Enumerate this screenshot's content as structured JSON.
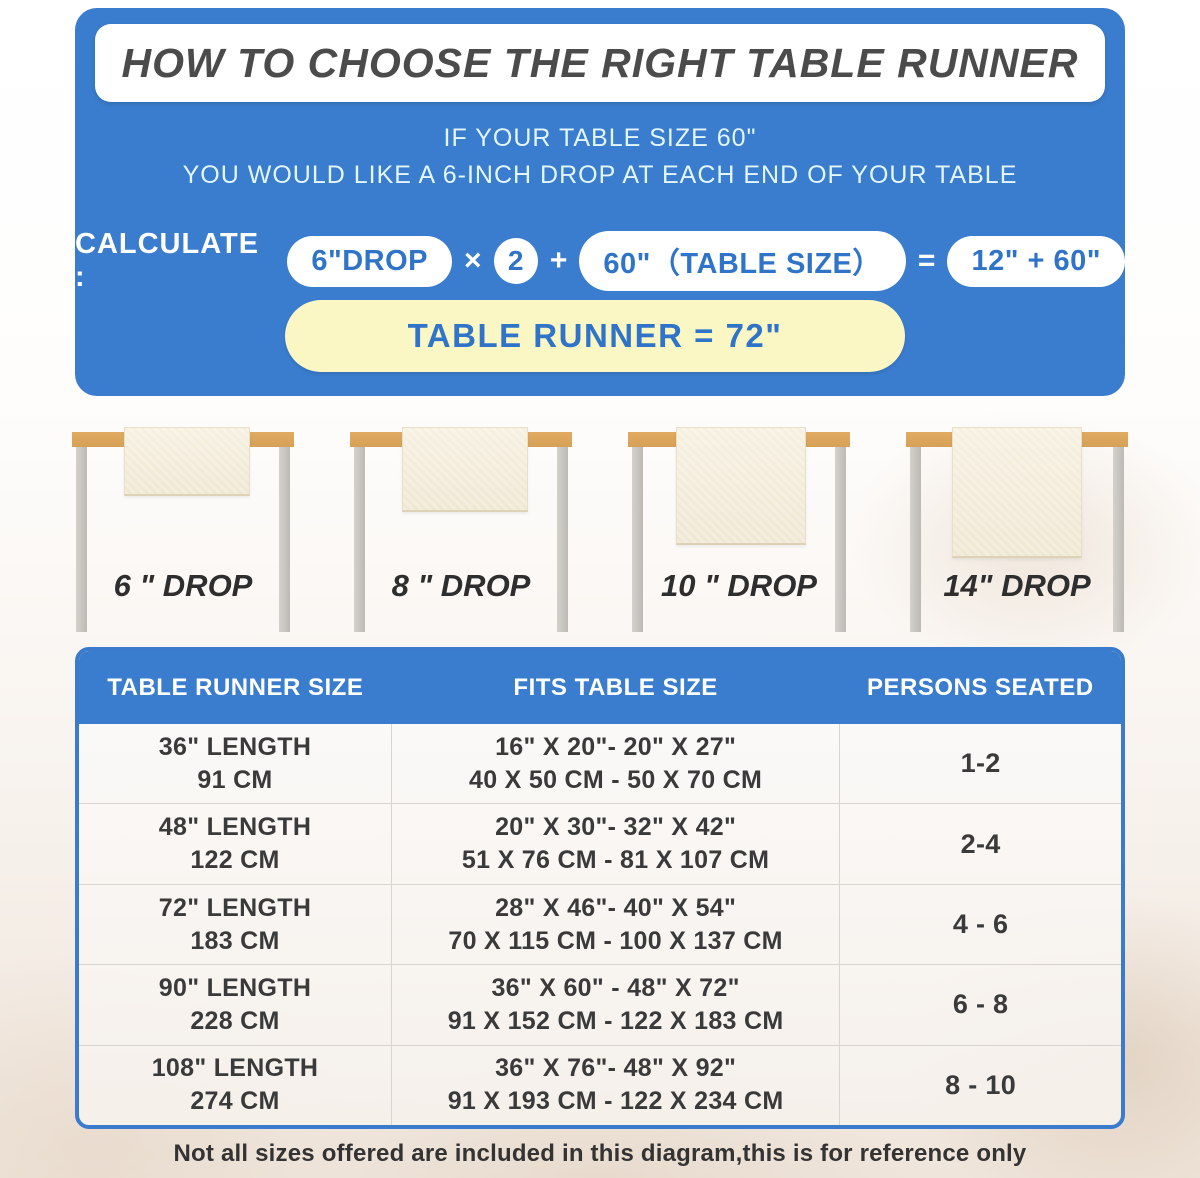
{
  "header": {
    "title": "HOW TO CHOOSE THE RIGHT TABLE RUNNER",
    "subtitle_line1": "IF YOUR TABLE SIZE 60\"",
    "subtitle_line2": "YOU WOULD LIKE A 6-INCH DROP AT EACH END OF YOUR TABLE",
    "calc": {
      "label": "CALCULATE :",
      "drop_pill": "6\"DROP",
      "times": "×",
      "multiplier": "2",
      "plus": "+",
      "table_size_pill": "60\"（TABLE SIZE）",
      "equals": "=",
      "sum_pill": "12\" + 60\"",
      "result": "TABLE RUNNER = 72\""
    }
  },
  "drops": [
    {
      "label": "6 \" DROP"
    },
    {
      "label": "8 \" DROP"
    },
    {
      "label": "10 \" DROP"
    },
    {
      "label": "14\" DROP"
    }
  ],
  "size_table": {
    "columns": [
      "TABLE RUNNER SIZE",
      "FITS TABLE SIZE",
      "PERSONS SEATED"
    ],
    "rows": [
      {
        "runner_in": "36\" LENGTH",
        "runner_cm": "91 CM",
        "fits_in": "16\" X 20\"- 20\" X 27\"",
        "fits_cm": "40 X 50 CM - 50 X 70 CM",
        "persons": "1-2"
      },
      {
        "runner_in": "48\" LENGTH",
        "runner_cm": "122 CM",
        "fits_in": "20\" X 30\"- 32\" X 42\"",
        "fits_cm": "51 X 76 CM - 81 X 107 CM",
        "persons": "2-4"
      },
      {
        "runner_in": "72\" LENGTH",
        "runner_cm": "183 CM",
        "fits_in": "28\" X 46\"- 40\" X 54\"",
        "fits_cm": "70 X 115 CM - 100 X 137 CM",
        "persons": "4 - 6"
      },
      {
        "runner_in": "90\" LENGTH",
        "runner_cm": "228 CM",
        "fits_in": "36\" X 60\" - 48\" X 72\"",
        "fits_cm": "91 X 152 CM - 122 X 183 CM",
        "persons": "6 - 8"
      },
      {
        "runner_in": "108\" LENGTH",
        "runner_cm": "274 CM",
        "fits_in": "36\" X 76\"- 48\" X 92\"",
        "fits_cm": "91 X 193 CM - 122 X 234 CM",
        "persons": "8 - 10"
      }
    ]
  },
  "footnote": "Not all sizes offered are included in this diagram,this is for reference only",
  "colors": {
    "panel_blue": "#3a7ccd",
    "pill_text_blue": "#2f74c8",
    "result_yellow": "#faf7c4",
    "wood_tan": "#dba75e",
    "leg_gray": "#c8c5c0",
    "runner_cream": "#f3ecd9",
    "title_gray": "#4b4b4b"
  }
}
